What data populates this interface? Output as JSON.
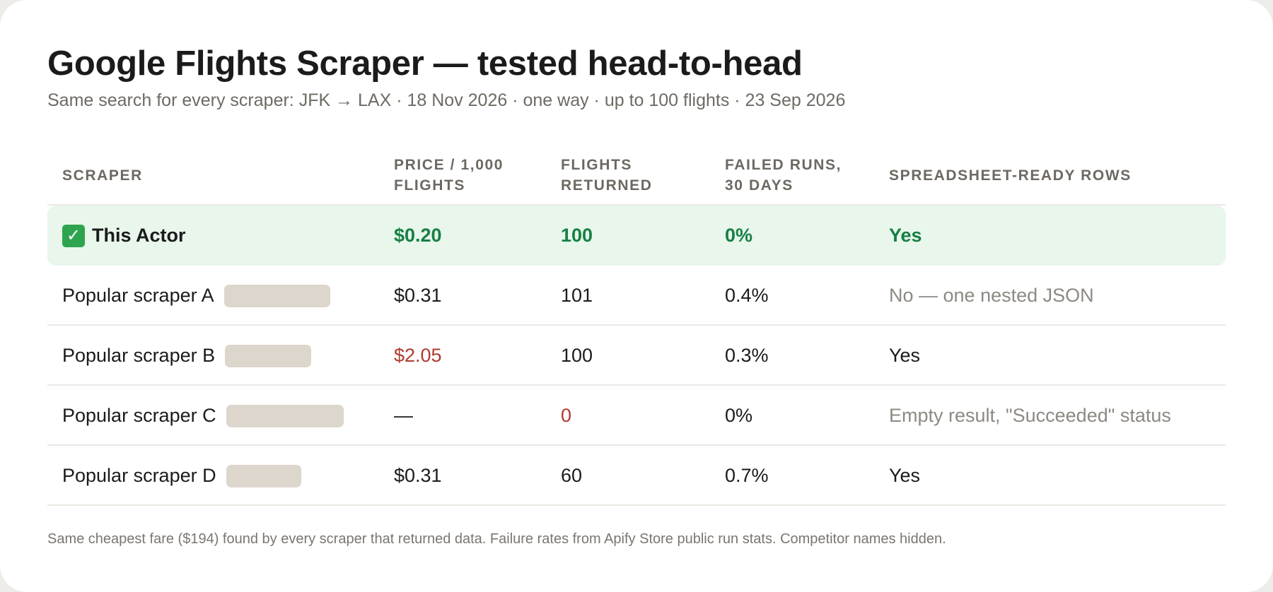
{
  "title": "Google Flights Scraper — tested head-to-head",
  "subtitle": "Same search for every scraper: JFK → LAX · 18 Nov 2026 · one way · up to 100 flights · 23 Sep 2026",
  "columns": {
    "scraper": "SCRAPER",
    "price_line1": "PRICE / 1,000",
    "price_line2": "FLIGHTS",
    "flights_line1": "FLIGHTS",
    "flights_line2": "RETURNED",
    "failed_line1": "FAILED RUNS,",
    "failed_line2": "30 DAYS",
    "rows_ready": "SPREADSHEET-READY ROWS"
  },
  "rows": [
    {
      "name": "This Actor",
      "icon": "check-mark-icon",
      "price": "$0.20",
      "flights": "100",
      "failed": "0%",
      "ready": "Yes"
    },
    {
      "name": "Popular scraper A",
      "price": "$0.31",
      "flights": "101",
      "failed": "0.4%",
      "ready": "No — one nested JSON"
    },
    {
      "name": "Popular scraper B",
      "price": "$2.05",
      "flights": "100",
      "failed": "0.3%",
      "ready": "Yes"
    },
    {
      "name": "Popular scraper C",
      "price": "—",
      "flights": "0",
      "failed": "0%",
      "ready": "Empty result, \"Succeeded\" status"
    },
    {
      "name": "Popular scraper D",
      "price": "$0.31",
      "flights": "60",
      "failed": "0.7%",
      "ready": "Yes"
    }
  ],
  "footnote": "Same cheapest fare ($194) found by every scraper that returned data. Failure rates from Apify Store public run stats. Competitor names hidden.",
  "colors": {
    "highlight_bg": "#e8f6ec",
    "positive": "#178043",
    "negative": "#b03a2e",
    "muted": "#8d8983",
    "redaction": "#dcd6cd"
  }
}
